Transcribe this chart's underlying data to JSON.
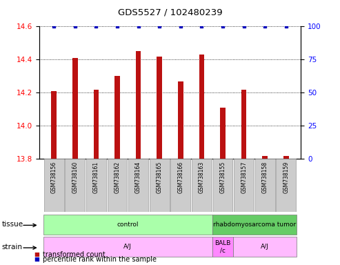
{
  "title": "GDS5527 / 102480239",
  "samples": [
    "GSM738156",
    "GSM738160",
    "GSM738161",
    "GSM738162",
    "GSM738164",
    "GSM738165",
    "GSM738166",
    "GSM738163",
    "GSM738155",
    "GSM738157",
    "GSM738158",
    "GSM738159"
  ],
  "bar_values": [
    14.21,
    14.41,
    14.22,
    14.3,
    14.45,
    14.42,
    14.27,
    14.43,
    14.11,
    14.22,
    13.82,
    13.82
  ],
  "percentile_values": [
    100,
    100,
    100,
    100,
    100,
    100,
    100,
    100,
    100,
    100,
    100,
    100
  ],
  "bar_color": "#bb1111",
  "percentile_color": "#0000bb",
  "ylim_left": [
    13.8,
    14.6
  ],
  "ylim_right": [
    0,
    100
  ],
  "yticks_left": [
    13.8,
    14.0,
    14.2,
    14.4,
    14.6
  ],
  "yticks_right": [
    0,
    25,
    50,
    75,
    100
  ],
  "tissue_groups": [
    {
      "label": "control",
      "start": 0,
      "end": 8,
      "color": "#aaffaa"
    },
    {
      "label": "rhabdomyosarcoma tumor",
      "start": 8,
      "end": 12,
      "color": "#66cc66"
    }
  ],
  "strain_groups": [
    {
      "label": "A/J",
      "start": 0,
      "end": 8,
      "color": "#ffbbff"
    },
    {
      "label": "BALB\n/c",
      "start": 8,
      "end": 9,
      "color": "#ff88ff"
    },
    {
      "label": "A/J",
      "start": 9,
      "end": 12,
      "color": "#ffbbff"
    }
  ],
  "legend_items": [
    {
      "label": "transformed count",
      "color": "#bb1111"
    },
    {
      "label": "percentile rank within the sample",
      "color": "#0000bb"
    }
  ],
  "background_color": "#ffffff",
  "xlabel_area_color": "#cccccc",
  "bar_width": 0.25
}
